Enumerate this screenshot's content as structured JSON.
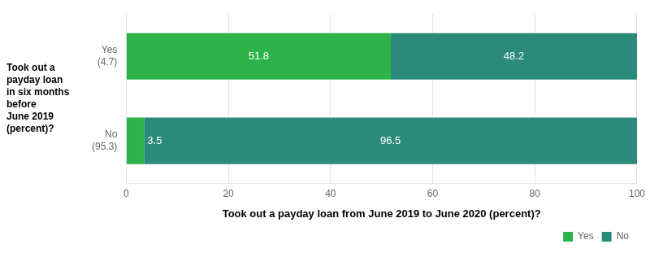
{
  "chart_data": {
    "type": "bar",
    "orientation": "horizontal",
    "stacked": true,
    "categories": [
      "Yes\n(4.7)",
      "No\n(95.3)"
    ],
    "series": [
      {
        "name": "Yes",
        "color": "#2db34a",
        "values": [
          51.8,
          3.5
        ]
      },
      {
        "name": "No",
        "color": "#2b8a7a",
        "values": [
          48.2,
          96.5
        ]
      }
    ],
    "xlabel": "Took out a payday loan from June 2019 to June 2020 (percent)?",
    "ylabel": "Took out a\npayday loan\nin six months\nbefore\nJune 2019\n(percent)?",
    "xlim": [
      0,
      100
    ],
    "xticks": [
      0,
      20,
      40,
      60,
      80,
      100
    ],
    "grid": true,
    "legend": "lower right",
    "data_labels": true
  }
}
